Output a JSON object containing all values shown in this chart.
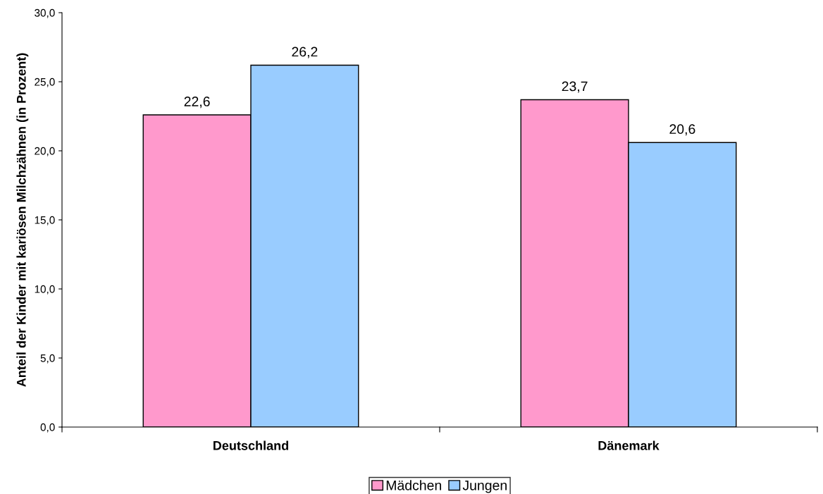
{
  "chart_data": {
    "type": "bar",
    "ylabel": "Anteil der Kinder mit kariösen Milchzähnen (in Prozent)",
    "categories": [
      "Deutschland",
      "Dänemark"
    ],
    "series": [
      {
        "name": "Mädchen",
        "color": "#ff99cc",
        "values": [
          22.6,
          23.7
        ],
        "value_labels": [
          "22,6",
          "23,7"
        ]
      },
      {
        "name": "Jungen",
        "color": "#99ccff",
        "values": [
          26.2,
          20.6
        ],
        "value_labels": [
          "26,2",
          "20,6"
        ]
      }
    ],
    "ylim": [
      0,
      30
    ],
    "yticks": [
      {
        "value": 0,
        "label": "0,0"
      },
      {
        "value": 5,
        "label": "5,0"
      },
      {
        "value": 10,
        "label": "10,0"
      },
      {
        "value": 15,
        "label": "15,0"
      },
      {
        "value": 20,
        "label": "20,0"
      },
      {
        "value": 25,
        "label": "25,0"
      },
      {
        "value": 30,
        "label": "30,0"
      }
    ],
    "grid": false,
    "legend": "bottom"
  }
}
